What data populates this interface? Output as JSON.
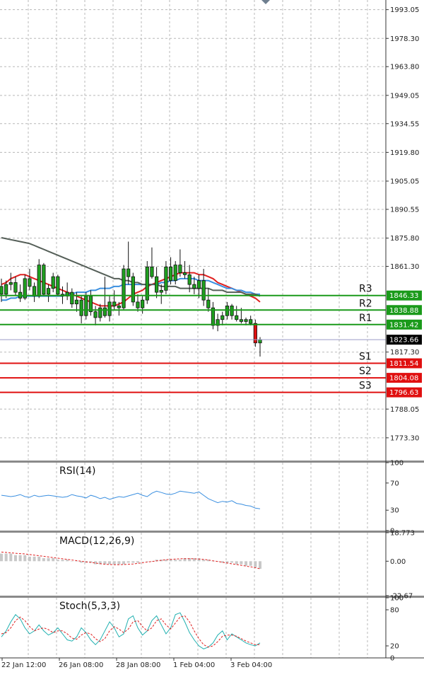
{
  "chart_data": [
    {
      "type": "candlestick",
      "panel": "price",
      "y_ticks": [
        "1993.05",
        "1978.30",
        "1963.80",
        "1949.05",
        "1934.55",
        "1919.80",
        "1905.05",
        "1890.55",
        "1875.80",
        "1861.30",
        "1817.30",
        "1788.05",
        "1773.30"
      ],
      "ylim": [
        1762,
        1998
      ],
      "x_ticks": [
        "22 Jan 12:00",
        "26 Jan 08:00",
        "28 Jan 08:00",
        "1 Feb 04:00",
        "3 Feb 04:00"
      ],
      "current_price": {
        "value": 1823.66,
        "label": "1823.66"
      },
      "levels": [
        {
          "name": "R3",
          "value": 1846.33,
          "label": "1846.33",
          "color": "#1a9a1a"
        },
        {
          "name": "R2",
          "value": 1838.88,
          "label": "1838.88",
          "color": "#1a9a1a"
        },
        {
          "name": "R1",
          "value": 1831.42,
          "label": "1831.42",
          "color": "#1a9a1a"
        },
        {
          "name": "S1",
          "value": 1811.54,
          "label": "1811.54",
          "color": "#e01010"
        },
        {
          "name": "S2",
          "value": 1804.08,
          "label": "1804.08",
          "color": "#e01010"
        },
        {
          "name": "S3",
          "value": 1796.63,
          "label": "1796.63",
          "color": "#e01010"
        }
      ],
      "candles": [
        [
          1851,
          1855,
          1843,
          1847
        ],
        [
          1847,
          1854,
          1845,
          1852
        ],
        [
          1852,
          1858,
          1849,
          1853
        ],
        [
          1853,
          1856,
          1846,
          1848
        ],
        [
          1848,
          1852,
          1843,
          1845
        ],
        [
          1845,
          1857,
          1844,
          1855
        ],
        [
          1855,
          1860,
          1849,
          1851
        ],
        [
          1851,
          1853,
          1843,
          1846
        ],
        [
          1846,
          1865,
          1845,
          1862
        ],
        [
          1862,
          1863,
          1846,
          1847
        ],
        [
          1847,
          1852,
          1843,
          1850
        ],
        [
          1850,
          1858,
          1848,
          1856
        ],
        [
          1856,
          1857,
          1846,
          1847
        ],
        [
          1847,
          1851,
          1842,
          1846
        ],
        [
          1846,
          1853,
          1844,
          1848
        ],
        [
          1848,
          1850,
          1840,
          1842
        ],
        [
          1842,
          1848,
          1838,
          1844
        ],
        [
          1844,
          1846,
          1832,
          1836
        ],
        [
          1836,
          1848,
          1834,
          1846
        ],
        [
          1846,
          1849,
          1836,
          1838
        ],
        [
          1838,
          1841,
          1831,
          1835
        ],
        [
          1835,
          1842,
          1833,
          1840
        ],
        [
          1840,
          1856,
          1835,
          1836
        ],
        [
          1836,
          1846,
          1833,
          1843
        ],
        [
          1843,
          1849,
          1839,
          1841
        ],
        [
          1841,
          1843,
          1836,
          1840
        ],
        [
          1840,
          1862,
          1839,
          1860
        ],
        [
          1860,
          1874,
          1852,
          1856
        ],
        [
          1856,
          1858,
          1841,
          1843
        ],
        [
          1843,
          1847,
          1838,
          1840
        ],
        [
          1840,
          1846,
          1837,
          1844
        ],
        [
          1844,
          1864,
          1842,
          1861
        ],
        [
          1861,
          1871,
          1855,
          1856
        ],
        [
          1856,
          1861,
          1845,
          1848
        ],
        [
          1848,
          1852,
          1842,
          1849
        ],
        [
          1849,
          1864,
          1847,
          1861
        ],
        [
          1861,
          1866,
          1852,
          1854
        ],
        [
          1854,
          1864,
          1852,
          1862
        ],
        [
          1862,
          1870,
          1856,
          1858
        ],
        [
          1858,
          1864,
          1855,
          1857
        ],
        [
          1857,
          1862,
          1848,
          1852
        ],
        [
          1852,
          1856,
          1847,
          1850
        ],
        [
          1850,
          1857,
          1845,
          1854
        ],
        [
          1854,
          1860,
          1841,
          1844
        ],
        [
          1844,
          1850,
          1838,
          1840
        ],
        [
          1840,
          1843,
          1829,
          1831
        ],
        [
          1831,
          1837,
          1828,
          1834
        ],
        [
          1834,
          1838,
          1831,
          1836
        ],
        [
          1836,
          1843,
          1834,
          1841
        ],
        [
          1841,
          1842,
          1834,
          1836
        ],
        [
          1836,
          1841,
          1833,
          1834
        ],
        [
          1834,
          1840,
          1832,
          1833
        ],
        [
          1833,
          1835,
          1831,
          1834
        ],
        [
          1834,
          1836,
          1831,
          1832
        ],
        [
          1832,
          1834,
          1820,
          1822
        ],
        [
          1822,
          1825,
          1815,
          1823.66
        ]
      ],
      "series": [
        {
          "name": "",
          "color": "#e02020",
          "values": [
            1852,
            1853,
            1855,
            1856,
            1857,
            1857,
            1856,
            1855,
            1854,
            1853,
            1852,
            1851,
            1850,
            1849,
            1848,
            1847,
            1846,
            1845,
            1844,
            1843,
            1842,
            1841,
            1841,
            1841,
            1841,
            1842,
            1843,
            1845,
            1847,
            1848,
            1849,
            1851,
            1852,
            1853,
            1854,
            1855,
            1856,
            1857,
            1858,
            1858,
            1858,
            1858,
            1857,
            1857,
            1856,
            1855,
            1853,
            1852,
            1851,
            1850,
            1849,
            1848,
            1847,
            1846,
            1845,
            1843
          ]
        },
        {
          "name": "",
          "color": "#3a8fe0",
          "values": [
            1844,
            1844,
            1845,
            1845,
            1846,
            1846,
            1846,
            1846,
            1846,
            1846,
            1846,
            1846,
            1846,
            1846,
            1847,
            1847,
            1848,
            1848,
            1848,
            1849,
            1849,
            1850,
            1850,
            1850,
            1851,
            1851,
            1852,
            1852,
            1852,
            1852,
            1852,
            1852,
            1852,
            1852,
            1853,
            1853,
            1854,
            1854,
            1855,
            1855,
            1855,
            1855,
            1854,
            1854,
            1854,
            1853,
            1852,
            1851,
            1850,
            1850,
            1849,
            1849,
            1848,
            1848,
            1847,
            1847
          ]
        },
        {
          "name": "",
          "color": "#555f58",
          "values": [
            1876,
            1875.5,
            1875,
            1874.5,
            1874,
            1873.5,
            1873,
            1872,
            1871,
            1870,
            1869,
            1868,
            1867,
            1866,
            1865,
            1864,
            1863,
            1862,
            1861,
            1860,
            1859,
            1858,
            1857,
            1856,
            1855,
            1855,
            1854,
            1854,
            1853,
            1853,
            1852,
            1852,
            1852,
            1852,
            1851,
            1851,
            1851,
            1851,
            1850,
            1850,
            1850,
            1850,
            1850,
            1850,
            1850,
            1849,
            1849,
            1849,
            1848,
            1848,
            1848,
            1848,
            1847,
            1847,
            1847,
            1846
          ]
        }
      ]
    },
    {
      "type": "line",
      "panel": "rsi",
      "title": "RSI(14)",
      "y_ticks": [
        "100",
        "70",
        "30",
        "0"
      ],
      "ylim": [
        0,
        100
      ],
      "series": [
        {
          "name": "",
          "color": "#3a8fe0",
          "values": [
            52,
            51,
            50,
            51,
            53,
            50,
            49,
            52,
            50,
            51,
            52,
            51,
            50,
            49,
            50,
            53,
            51,
            50,
            48,
            52,
            50,
            47,
            49,
            46,
            48,
            50,
            49,
            51,
            53,
            55,
            52,
            50,
            55,
            58,
            56,
            54,
            53,
            55,
            58,
            57,
            56,
            55,
            57,
            52,
            47,
            44,
            41,
            43,
            42,
            44,
            40,
            39,
            37,
            36,
            33,
            32
          ]
        }
      ]
    },
    {
      "type": "line",
      "panel": "macd",
      "title": "MACD(12,26,9)",
      "y_ticks": [
        "18.773",
        "0.00",
        "-22.67"
      ],
      "ylim": [
        -22.67,
        18.773
      ],
      "histogram": [
        5,
        5,
        5,
        4,
        4,
        4,
        3,
        3,
        3,
        2,
        2,
        2,
        1,
        1,
        1,
        0,
        0,
        -1,
        -1,
        -1,
        -2,
        -2,
        -2,
        -2,
        -2,
        -2,
        -2,
        -1,
        -1,
        -1,
        0,
        0,
        0,
        1,
        1,
        1,
        1,
        1,
        1,
        2,
        2,
        2,
        2,
        1,
        1,
        0,
        0,
        -1,
        -1,
        -1,
        -2,
        -2,
        -3,
        -3,
        -4,
        -5
      ],
      "series": [
        {
          "name": "",
          "color": "#e02020",
          "values": [
            6,
            5.8,
            5.5,
            5.2,
            5,
            4.8,
            4.4,
            4,
            3.6,
            3.2,
            2.8,
            2.4,
            2,
            1.6,
            1.2,
            0.8,
            0.4,
            0,
            -0.4,
            -0.8,
            -1.2,
            -1.6,
            -2,
            -2.2,
            -2.3,
            -2.3,
            -2.2,
            -2,
            -1.8,
            -1.4,
            -1,
            -0.6,
            -0.2,
            0.2,
            0.6,
            1,
            1.2,
            1.4,
            1.6,
            1.7,
            1.7,
            1.6,
            1.4,
            1.2,
            0.8,
            0.3,
            -0.2,
            -0.7,
            -1.2,
            -1.7,
            -2.2,
            -2.7,
            -3.2,
            -3.7,
            -4.3,
            -5
          ]
        }
      ]
    },
    {
      "type": "line",
      "panel": "stoch",
      "title": "Stoch(5,3,3)",
      "y_ticks": [
        "100",
        "80",
        "20",
        "0"
      ],
      "ylim": [
        0,
        100
      ],
      "series": [
        {
          "name": "",
          "color": "#20b0b0",
          "values": [
            35,
            45,
            60,
            72,
            65,
            50,
            40,
            45,
            55,
            45,
            38,
            42,
            50,
            40,
            30,
            28,
            35,
            50,
            42,
            30,
            22,
            30,
            45,
            60,
            50,
            35,
            40,
            65,
            70,
            50,
            38,
            45,
            62,
            70,
            55,
            40,
            50,
            72,
            75,
            60,
            42,
            30,
            20,
            15,
            18,
            25,
            38,
            45,
            30,
            40,
            35,
            30,
            25,
            22,
            20,
            25
          ]
        },
        {
          "name": "",
          "color": "#e02020",
          "values": [
            40,
            42,
            50,
            62,
            68,
            62,
            52,
            45,
            48,
            50,
            47,
            42,
            45,
            45,
            40,
            33,
            31,
            38,
            42,
            40,
            32,
            27,
            32,
            45,
            52,
            48,
            42,
            48,
            60,
            62,
            52,
            45,
            50,
            62,
            65,
            55,
            48,
            58,
            68,
            70,
            60,
            45,
            32,
            22,
            18,
            20,
            27,
            36,
            38,
            38,
            36,
            32,
            28,
            25,
            22,
            22
          ]
        }
      ]
    }
  ]
}
